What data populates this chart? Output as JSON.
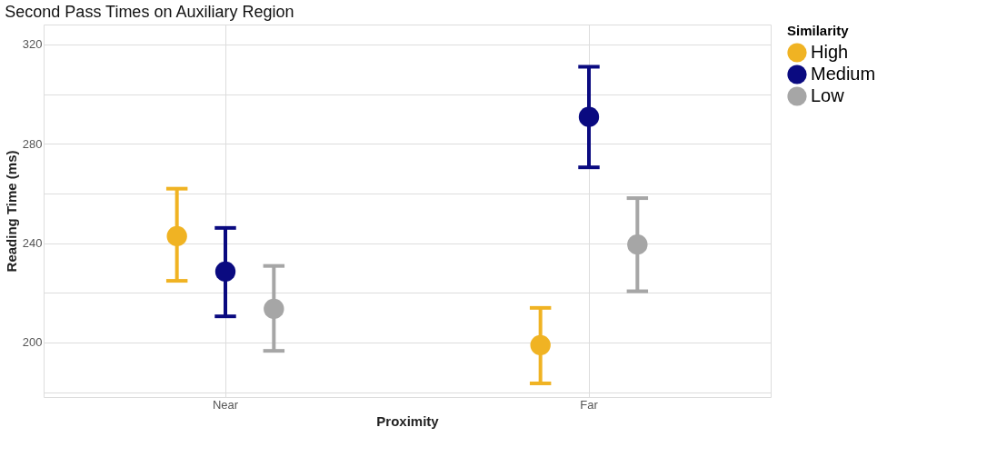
{
  "chart_data": {
    "type": "scatter",
    "title": "Second Pass Times on Auxiliary Region",
    "xlabel": "Proximity",
    "ylabel": "Reading Time (ms)",
    "legend_title": "Similarity",
    "categories": [
      "Near",
      "Far"
    ],
    "series": [
      {
        "name": "High",
        "color": "#f0b323",
        "values": [
          242.8,
          198.9
        ],
        "errors": [
          [
            224.8,
            261.9
          ],
          [
            183.5,
            213.9
          ]
        ]
      },
      {
        "name": "Medium",
        "color": "#0a0a80",
        "values": [
          228.5,
          290.8
        ],
        "errors": [
          [
            210.5,
            246.1
          ],
          [
            270.5,
            311.0
          ]
        ]
      },
      {
        "name": "Low",
        "color": "#a6a6a6",
        "values": [
          213.5,
          239.4
        ],
        "errors": [
          [
            196.6,
            230.8
          ],
          [
            220.6,
            258.1
          ]
        ]
      }
    ],
    "ylim": [
      178,
      328
    ],
    "yticks": [
      {
        "value": 180,
        "label": null
      },
      200,
      {
        "value": 220,
        "label": null
      },
      240,
      {
        "value": 260,
        "label": null
      },
      280,
      {
        "value": 300,
        "label": null
      },
      320
    ],
    "grid": true,
    "legend": "right",
    "marker": "circle"
  }
}
